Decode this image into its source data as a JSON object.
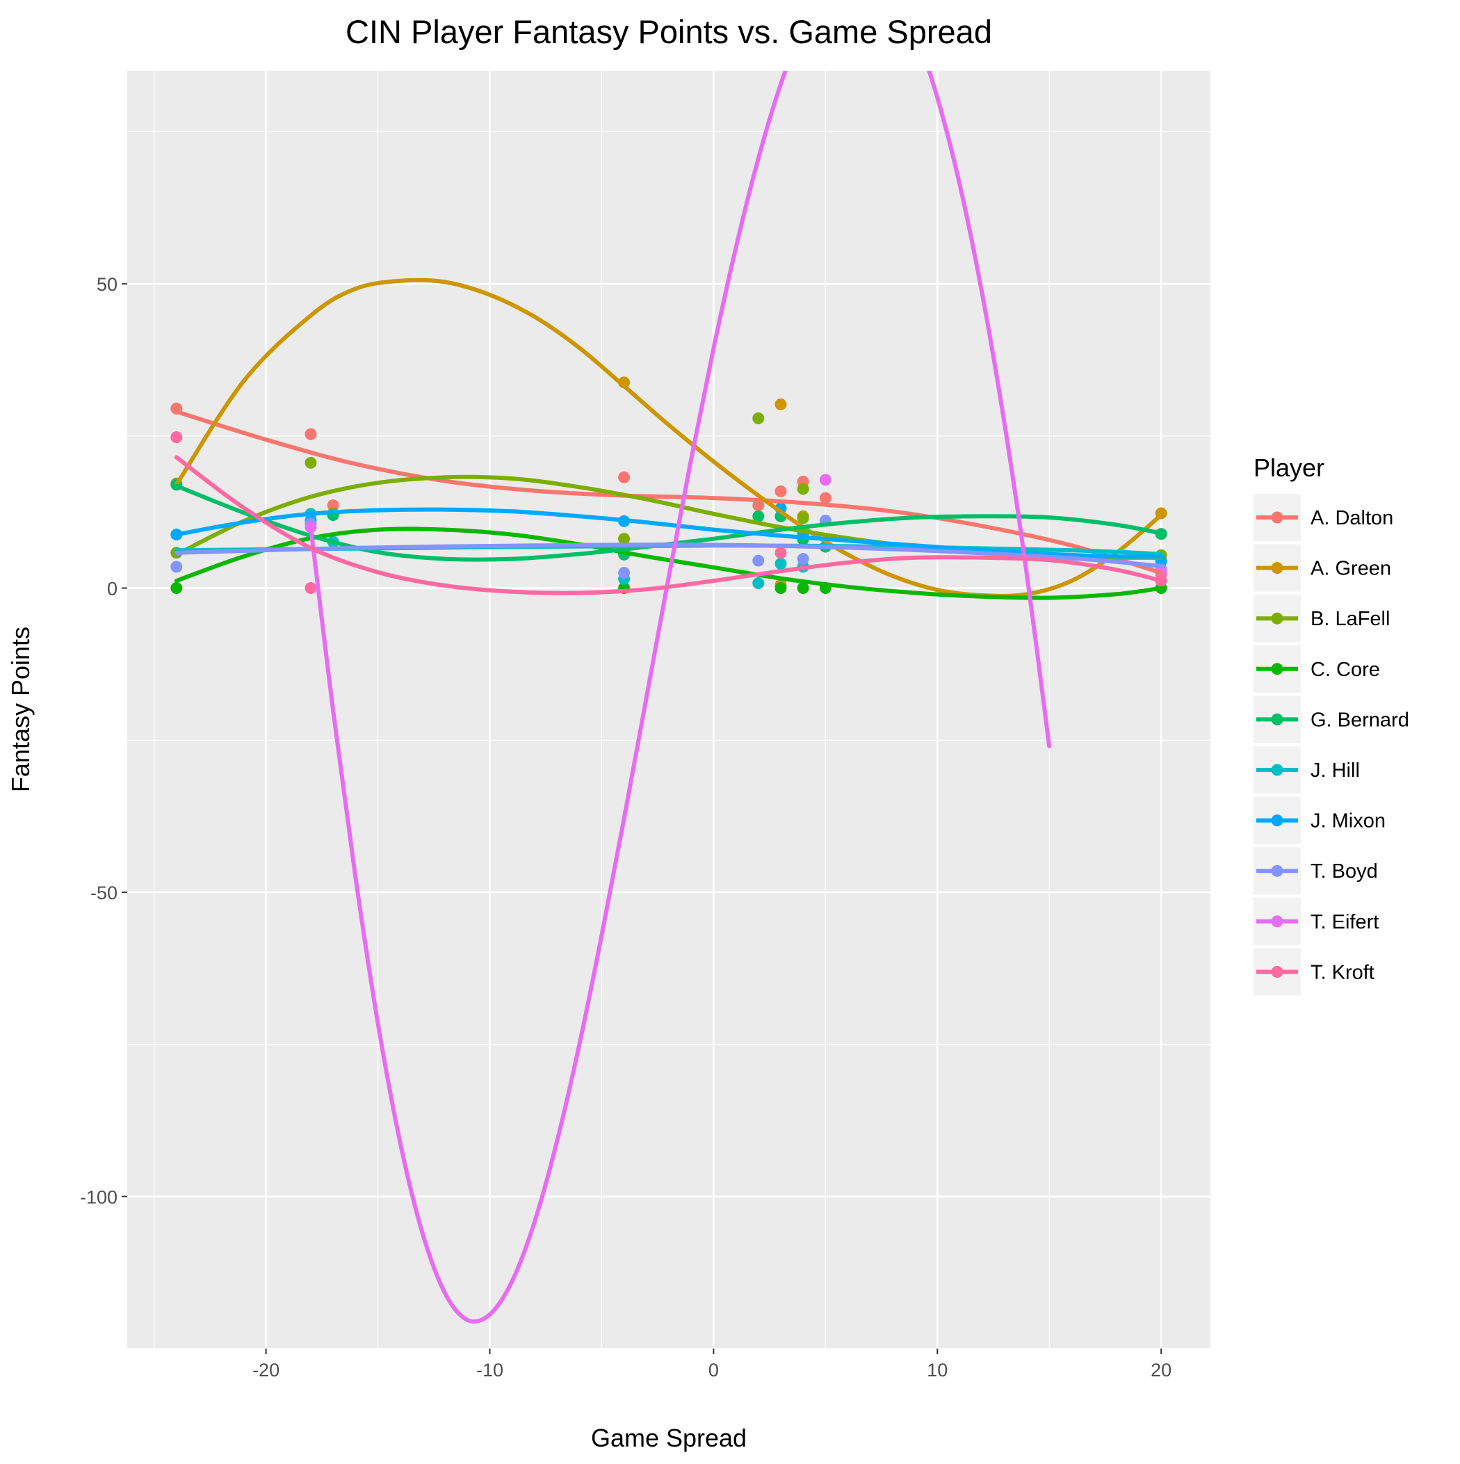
{
  "chart_data": {
    "type": "scatter",
    "title": "CIN Player Fantasy Points vs. Game Spread",
    "xlabel": "Game Spread",
    "ylabel": "Fantasy Points",
    "xlim": [
      -26.2,
      22.2
    ],
    "ylim": [
      -125.0,
      85.0
    ],
    "x_ticks": [
      -20,
      -10,
      0,
      10,
      20
    ],
    "y_ticks": [
      -100,
      -50,
      0,
      50
    ],
    "grid": true,
    "legend_title": "Player",
    "legend_position": "right",
    "series": [
      {
        "name": "A. Dalton",
        "color": "#F8766D",
        "points": [
          [
            -24,
            29.5
          ],
          [
            -18,
            25.3
          ],
          [
            -17,
            13.6
          ],
          [
            -4,
            18.2
          ],
          [
            2,
            13.6
          ],
          [
            3,
            15.9
          ],
          [
            4,
            17.5
          ],
          [
            5,
            14.8
          ],
          [
            20,
            2.3
          ]
        ],
        "curve": [
          [
            -24,
            29.0
          ],
          [
            -20,
            24.4
          ],
          [
            -16,
            20.4
          ],
          [
            -12,
            17.6
          ],
          [
            -8,
            16.0
          ],
          [
            -4,
            15.2
          ],
          [
            0,
            14.8
          ],
          [
            4,
            14.0
          ],
          [
            8,
            12.6
          ],
          [
            12,
            10.2
          ],
          [
            16,
            7.0
          ],
          [
            20,
            2.5
          ]
        ]
      },
      {
        "name": "A. Green",
        "color": "#CD9600",
        "points": [
          [
            -24,
            17.2
          ],
          [
            -4,
            33.8
          ],
          [
            3,
            30.2
          ],
          [
            3,
            0.5
          ],
          [
            4,
            11.8
          ],
          [
            20,
            12.3
          ]
        ],
        "curve": [
          [
            -24,
            17.0
          ],
          [
            -21,
            34.0
          ],
          [
            -18,
            44.8
          ],
          [
            -16,
            49.2
          ],
          [
            -14,
            50.5
          ],
          [
            -12,
            50.3
          ],
          [
            -10,
            48.2
          ],
          [
            -8,
            44.6
          ],
          [
            -6,
            39.5
          ],
          [
            -4,
            33.2
          ],
          [
            -2,
            26.8
          ],
          [
            0,
            20.8
          ],
          [
            2,
            15.2
          ],
          [
            4,
            10.0
          ],
          [
            6,
            5.5
          ],
          [
            8,
            2.0
          ],
          [
            10,
            -0.3
          ],
          [
            12,
            -1.2
          ],
          [
            14,
            -1.0
          ],
          [
            16,
            1.2
          ],
          [
            18,
            5.8
          ],
          [
            20,
            12.0
          ]
        ]
      },
      {
        "name": "B. LaFell",
        "color": "#7CAE00",
        "points": [
          [
            -24,
            5.8
          ],
          [
            -18,
            20.6
          ],
          [
            -17,
            12.3
          ],
          [
            -4,
            8.1
          ],
          [
            2,
            27.9
          ],
          [
            4,
            16.3
          ],
          [
            4,
            11.5
          ],
          [
            20,
            5.4
          ]
        ],
        "curve": [
          [
            -24,
            5.5
          ],
          [
            -21,
            11.0
          ],
          [
            -18,
            15.0
          ],
          [
            -15,
            17.3
          ],
          [
            -12,
            18.2
          ],
          [
            -9,
            18.0
          ],
          [
            -6,
            16.6
          ],
          [
            -3,
            14.6
          ],
          [
            0,
            12.2
          ],
          [
            3,
            10.0
          ],
          [
            6,
            8.2
          ],
          [
            9,
            6.8
          ],
          [
            12,
            5.8
          ],
          [
            15,
            5.2
          ],
          [
            18,
            5.0
          ],
          [
            20,
            5.0
          ]
        ]
      },
      {
        "name": "C. Core",
        "color": "#0CB702",
        "points": [
          [
            -24,
            0.0
          ],
          [
            -4,
            0.0
          ],
          [
            3,
            0.0
          ],
          [
            4,
            0.0
          ],
          [
            5,
            0.0
          ],
          [
            20,
            0.0
          ]
        ],
        "curve": [
          [
            -24,
            1.2
          ],
          [
            -21,
            5.2
          ],
          [
            -18,
            8.2
          ],
          [
            -15,
            9.6
          ],
          [
            -12,
            9.6
          ],
          [
            -9,
            8.8
          ],
          [
            -6,
            7.2
          ],
          [
            -3,
            5.2
          ],
          [
            0,
            3.4
          ],
          [
            3,
            1.6
          ],
          [
            6,
            0.2
          ],
          [
            9,
            -0.8
          ],
          [
            12,
            -1.4
          ],
          [
            15,
            -1.6
          ],
          [
            18,
            -1.0
          ],
          [
            20,
            0.0
          ]
        ]
      },
      {
        "name": "G. Bernard",
        "color": "#00BE67",
        "points": [
          [
            -24,
            17.0
          ],
          [
            -17,
            12.0
          ],
          [
            -4,
            5.5
          ],
          [
            2,
            11.8
          ],
          [
            3,
            11.8
          ],
          [
            4,
            8.0
          ],
          [
            5,
            6.8
          ],
          [
            20,
            8.9
          ]
        ],
        "curve": [
          [
            -24,
            16.8
          ],
          [
            -21,
            12.4
          ],
          [
            -18,
            8.6
          ],
          [
            -15,
            5.9
          ],
          [
            -12,
            4.8
          ],
          [
            -9,
            4.8
          ],
          [
            -6,
            5.6
          ],
          [
            -3,
            6.8
          ],
          [
            0,
            8.1
          ],
          [
            3,
            9.6
          ],
          [
            6,
            10.8
          ],
          [
            9,
            11.6
          ],
          [
            12,
            11.8
          ],
          [
            15,
            11.6
          ],
          [
            18,
            10.4
          ],
          [
            20,
            9.0
          ]
        ]
      },
      {
        "name": "J. Hill",
        "color": "#00BFC4",
        "points": [
          [
            -18,
            12.2
          ],
          [
            -17,
            7.6
          ],
          [
            -4,
            1.5
          ],
          [
            2,
            0.8
          ],
          [
            3,
            4.0
          ],
          [
            4,
            3.5
          ],
          [
            20,
            3.1
          ]
        ],
        "curve": [
          [
            -24,
            6.2
          ],
          [
            -16,
            6.5
          ],
          [
            -8,
            6.8
          ],
          [
            0,
            7.0
          ],
          [
            8,
            6.8
          ],
          [
            16,
            6.2
          ],
          [
            20,
            5.6
          ]
        ]
      },
      {
        "name": "J. Mixon",
        "color": "#00A9FF",
        "points": [
          [
            -24,
            8.8
          ],
          [
            -18,
            11.1
          ],
          [
            -4,
            11.0
          ],
          [
            3,
            13.1
          ],
          [
            4,
            8.9
          ],
          [
            20,
            4.4
          ]
        ],
        "curve": [
          [
            -24,
            8.8
          ],
          [
            -21,
            10.8
          ],
          [
            -18,
            12.2
          ],
          [
            -15,
            12.8
          ],
          [
            -12,
            12.9
          ],
          [
            -9,
            12.6
          ],
          [
            -6,
            11.8
          ],
          [
            -3,
            10.8
          ],
          [
            0,
            9.6
          ],
          [
            3,
            8.6
          ],
          [
            6,
            7.8
          ],
          [
            9,
            7.0
          ],
          [
            12,
            6.2
          ],
          [
            15,
            5.6
          ],
          [
            18,
            5.2
          ],
          [
            20,
            5.2
          ]
        ]
      },
      {
        "name": "T. Boyd",
        "color": "#8494FF",
        "points": [
          [
            -24,
            3.5
          ],
          [
            -18,
            10.6
          ],
          [
            -4,
            2.5
          ],
          [
            2,
            4.5
          ],
          [
            4,
            4.8
          ],
          [
            5,
            11.1
          ],
          [
            20,
            3.0
          ]
        ],
        "curve": [
          [
            -24,
            5.8
          ],
          [
            -16,
            6.6
          ],
          [
            -8,
            7.0
          ],
          [
            0,
            7.1
          ],
          [
            8,
            6.4
          ],
          [
            16,
            4.9
          ],
          [
            20,
            3.6
          ]
        ]
      },
      {
        "name": "T. Eifert",
        "color": "#E76BF3",
        "points": [
          [
            -18,
            10.0
          ],
          [
            5,
            17.8
          ],
          [
            20,
            2.8
          ]
        ],
        "curve": [
          [
            -18,
            10.0
          ],
          [
            -17,
            -20.1
          ],
          [
            -16,
            -47.5
          ],
          [
            -15,
            -71.5
          ],
          [
            -14,
            -91.2
          ],
          [
            -13,
            -106.1
          ],
          [
            -12,
            -115.9
          ],
          [
            -11,
            -120.3
          ],
          [
            -10,
            -119.4
          ],
          [
            -9,
            -113.9
          ],
          [
            -8,
            -104.2
          ],
          [
            -7,
            -91.0
          ],
          [
            -6,
            -75.1
          ],
          [
            -5,
            -57.1
          ],
          [
            -4,
            -37.9
          ],
          [
            -3,
            -18.0
          ],
          [
            -2,
            1.9
          ],
          [
            -1,
            21.2
          ],
          [
            0,
            39.4
          ],
          [
            1,
            56.0
          ],
          [
            2,
            70.6
          ],
          [
            3,
            82.8
          ],
          [
            4,
            92.3
          ],
          [
            5,
            98.8
          ],
          [
            6,
            102.1
          ],
          [
            7,
            102.1
          ],
          [
            8,
            98.5
          ],
          [
            9,
            91.4
          ],
          [
            10,
            80.6
          ],
          [
            11,
            66.3
          ],
          [
            12,
            48.4
          ],
          [
            13,
            27.0
          ],
          [
            14,
            2.2
          ],
          [
            15,
            -26.0
          ]
        ]
      },
      {
        "name": "T. Kroft",
        "color": "#FF68A1",
        "points": [
          [
            -24,
            24.8
          ],
          [
            -18,
            0.0
          ],
          [
            3,
            5.8
          ],
          [
            20,
            1.2
          ]
        ],
        "curve": [
          [
            -24,
            21.5
          ],
          [
            -21,
            13.2
          ],
          [
            -18,
            6.6
          ],
          [
            -15,
            2.6
          ],
          [
            -12,
            0.4
          ],
          [
            -9,
            -0.6
          ],
          [
            -6,
            -0.8
          ],
          [
            -3,
            -0.2
          ],
          [
            0,
            1.2
          ],
          [
            3,
            2.8
          ],
          [
            6,
            4.2
          ],
          [
            9,
            5.0
          ],
          [
            12,
            5.0
          ],
          [
            15,
            4.6
          ],
          [
            18,
            3.0
          ],
          [
            20,
            1.2
          ]
        ]
      }
    ]
  }
}
